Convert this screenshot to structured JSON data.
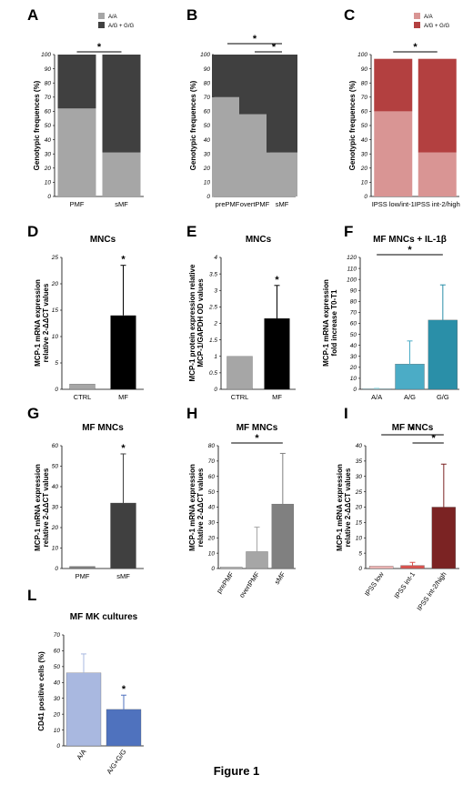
{
  "figure": {
    "caption": "Figure 1"
  },
  "chart_data": [
    {
      "panel": "A",
      "type": "bar",
      "stacked": true,
      "ylabel": "Genotypic frequences (%)",
      "yticks": [
        0,
        10,
        20,
        30,
        40,
        50,
        60,
        70,
        80,
        90,
        100
      ],
      "ylim": [
        0,
        100
      ],
      "categories": [
        "PMF",
        "sMF"
      ],
      "legend": [
        "A/A",
        "A/G + G/G"
      ],
      "legend_position": "top-right",
      "series": [
        {
          "name": "A/A",
          "values": [
            62,
            31
          ],
          "color": "#a6a6a6"
        },
        {
          "name": "A/G + G/G",
          "values": [
            38,
            69
          ],
          "color": "#404040"
        }
      ],
      "significance": [
        {
          "from": 0,
          "to": 1,
          "label": "*"
        }
      ]
    },
    {
      "panel": "B",
      "type": "bar",
      "stacked": true,
      "ylabel": "Genotypic frequences (%)",
      "yticks": [
        0,
        10,
        20,
        30,
        40,
        50,
        60,
        70,
        80,
        90,
        100
      ],
      "ylim": [
        0,
        100
      ],
      "categories": [
        "prePMF",
        "overtPMF",
        "sMF"
      ],
      "series": [
        {
          "name": "A/A",
          "values": [
            70,
            58,
            31
          ],
          "color": "#a6a6a6"
        },
        {
          "name": "A/G + G/G",
          "values": [
            30,
            42,
            69
          ],
          "color": "#404040"
        }
      ],
      "significance": [
        {
          "from": 0,
          "to": 2,
          "label": "*"
        },
        {
          "from": 1,
          "to": 2,
          "label": "*"
        }
      ]
    },
    {
      "panel": "C",
      "type": "bar",
      "stacked": true,
      "ylabel": "Genotypic frequences (%)",
      "yticks": [
        0,
        10,
        20,
        30,
        40,
        50,
        60,
        70,
        80,
        90,
        100
      ],
      "ylim": [
        0,
        100
      ],
      "categories": [
        "IPSS low/int-1",
        "IPSS int-2/high"
      ],
      "legend": [
        "A/A",
        "A/G + G/G"
      ],
      "legend_position": "top-right",
      "series": [
        {
          "name": "A/A",
          "values": [
            60,
            31
          ],
          "color": "#d99594"
        },
        {
          "name": "A/G + G/G",
          "values": [
            37,
            66
          ],
          "color": "#b34040"
        }
      ],
      "significance": [
        {
          "from": 0,
          "to": 1,
          "label": "*"
        }
      ]
    },
    {
      "panel": "D",
      "type": "bar",
      "title": "MNCs",
      "ylabel": "MCP-1 mRNA expression relative 2-ΔΔCT values",
      "yticks": [
        0,
        5,
        10,
        15,
        20,
        25
      ],
      "ylim": [
        0,
        25
      ],
      "categories": [
        "CTRL",
        "MF"
      ],
      "values": [
        1,
        14
      ],
      "errors": [
        0,
        9.5
      ],
      "colors": [
        "#a6a6a6",
        "#000000"
      ],
      "stars": [
        "",
        "*"
      ]
    },
    {
      "panel": "E",
      "type": "bar",
      "title": "MNCs",
      "ylabel": "MCP-1 protein expression relative MCP-1/GAPDH OD values",
      "yticks": [
        0,
        0.5,
        1,
        1.5,
        2,
        2.5,
        3,
        3.5,
        4
      ],
      "ylim": [
        0,
        4
      ],
      "categories": [
        "CTRL",
        "MF"
      ],
      "values": [
        1,
        2.15
      ],
      "errors": [
        0,
        1.0
      ],
      "colors": [
        "#a6a6a6",
        "#000000"
      ],
      "stars": [
        "",
        "*"
      ]
    },
    {
      "panel": "F",
      "type": "bar",
      "title": "MF MNCs + IL-1β",
      "ylabel": "MCP-1 mRNA expression fold increase T0-T1",
      "yticks": [
        0,
        10,
        20,
        30,
        40,
        50,
        60,
        70,
        80,
        90,
        100,
        110,
        120
      ],
      "ylim": [
        0,
        120
      ],
      "categories": [
        "A/A",
        "A/G",
        "G/G"
      ],
      "values": [
        0.5,
        23,
        63
      ],
      "errors": [
        0.5,
        21,
        32
      ],
      "colors": [
        "#9fdfe8",
        "#4bacc6",
        "#2a8fa8"
      ],
      "significance": [
        {
          "from": 0,
          "to": 2,
          "label": "*"
        }
      ]
    },
    {
      "panel": "G",
      "type": "bar",
      "title": "MF MNCs",
      "ylabel": "MCP-1 mRNA expression relative 2-ΔΔCT values",
      "yticks": [
        0,
        10,
        20,
        30,
        40,
        50,
        60
      ],
      "ylim": [
        0,
        60
      ],
      "categories": [
        "PMF",
        "sMF"
      ],
      "values": [
        1,
        32
      ],
      "errors": [
        0,
        24
      ],
      "colors": [
        "#7f7f7f",
        "#404040"
      ],
      "stars": [
        "",
        "*"
      ]
    },
    {
      "panel": "H",
      "type": "bar",
      "title": "MF MNCs",
      "ylabel": "MCP-1 mRNA expression relative 2-ΔΔCT values",
      "yticks": [
        0,
        10,
        20,
        30,
        40,
        50,
        60,
        70,
        80
      ],
      "ylim": [
        0,
        80
      ],
      "categories": [
        "prePMF",
        "overtPMF",
        "sMF"
      ],
      "rotate_categories": true,
      "values": [
        1,
        11,
        42
      ],
      "errors": [
        0,
        16,
        33
      ],
      "colors": [
        "#bfbfbf",
        "#a6a6a6",
        "#808080"
      ],
      "significance": [
        {
          "from": 0,
          "to": 2,
          "label": "*"
        }
      ]
    },
    {
      "panel": "I",
      "type": "bar",
      "title": "MF MNCs",
      "ylabel": "MCP-1 mRNA expression relative 2-ΔΔCT values",
      "yticks": [
        0,
        5,
        10,
        15,
        20,
        25,
        30,
        35,
        40
      ],
      "ylim": [
        0,
        40
      ],
      "categories": [
        "IPSS low",
        "IPSS int-1",
        "IPSS int-2/high"
      ],
      "rotate_categories": true,
      "values": [
        0.8,
        1,
        20
      ],
      "errors": [
        0,
        1,
        14
      ],
      "colors": [
        "#f2b8b7",
        "#d9534f",
        "#7b2323"
      ],
      "significance": [
        {
          "from": 0,
          "to": 2,
          "label": "*"
        },
        {
          "from": 1,
          "to": 2,
          "label": "*"
        }
      ]
    },
    {
      "panel": "L",
      "type": "bar",
      "title": "MF MK cultures",
      "ylabel": "CD41 positive cells (%)",
      "yticks": [
        0,
        10,
        20,
        30,
        40,
        50,
        60,
        70
      ],
      "ylim": [
        0,
        70
      ],
      "categories": [
        "A/A",
        "A/G+G/G"
      ],
      "rotate_categories": true,
      "values": [
        46,
        23
      ],
      "errors": [
        12,
        9
      ],
      "colors": [
        "#a9b8e0",
        "#4f72be"
      ],
      "stars": [
        "",
        "*"
      ]
    }
  ]
}
